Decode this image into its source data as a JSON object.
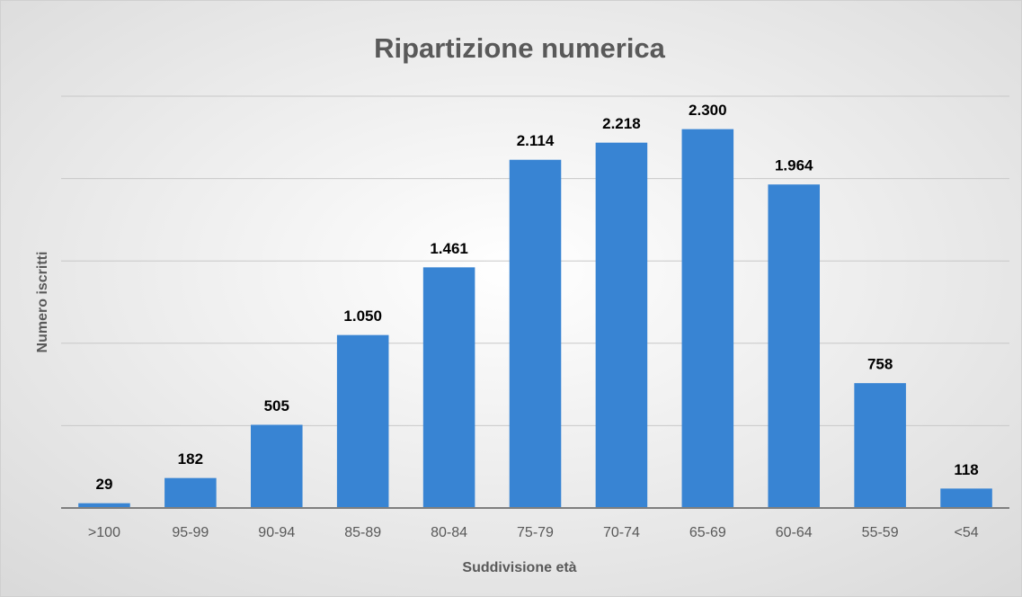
{
  "chart_data": {
    "type": "bar",
    "title": "Ripartizione numerica",
    "x_label": "Suddivisione età",
    "y_label": "Numero iscritti",
    "categories": [
      ">100",
      "95-99",
      "90-94",
      "85-89",
      "80-84",
      "75-79",
      "70-74",
      "65-69",
      "60-64",
      "55-59",
      "<54"
    ],
    "values": [
      29,
      182,
      505,
      1050,
      1461,
      2114,
      2218,
      2300,
      1964,
      758,
      118
    ],
    "value_labels": [
      "29",
      "182",
      "505",
      "1.050",
      "1.461",
      "2.114",
      "2.218",
      "2.300",
      "1.964",
      "758",
      "118"
    ],
    "color": "#3884d3",
    "ylim": [
      0,
      2500
    ],
    "yticks": [
      0,
      500,
      1000,
      1500,
      2000,
      2500
    ],
    "grid": true
  }
}
